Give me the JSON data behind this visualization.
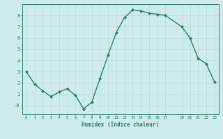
{
  "x": [
    0,
    1,
    2,
    3,
    4,
    5,
    6,
    7,
    8,
    9,
    10,
    11,
    12,
    13,
    14,
    15,
    16,
    17,
    19,
    20,
    21,
    22,
    23
  ],
  "y": [
    3.0,
    1.9,
    1.3,
    0.8,
    1.2,
    1.5,
    0.9,
    -0.3,
    0.3,
    2.4,
    4.5,
    6.5,
    7.8,
    8.5,
    8.4,
    8.2,
    8.1,
    8.0,
    7.0,
    6.0,
    4.2,
    3.7,
    2.1
  ],
  "xlabel": "Humidex (Indice chaleur)",
  "xticks": [
    0,
    1,
    2,
    3,
    4,
    5,
    6,
    7,
    8,
    9,
    10,
    11,
    12,
    13,
    14,
    15,
    16,
    17,
    19,
    20,
    21,
    22,
    23
  ],
  "yticks": [
    0,
    1,
    2,
    3,
    4,
    5,
    6,
    7,
    8
  ],
  "ylim": [
    -0.75,
    9.0
  ],
  "xlim": [
    -0.5,
    23.5
  ],
  "line_color": "#2e7d6e",
  "marker_color": "#2e7d6e",
  "bg_color": "#ceecea",
  "grid_color": "#b8dbd8",
  "axis_color": "#2e7d6e",
  "tick_label_color": "#2e7d6e",
  "xlabel_color": "#2e7d6e"
}
